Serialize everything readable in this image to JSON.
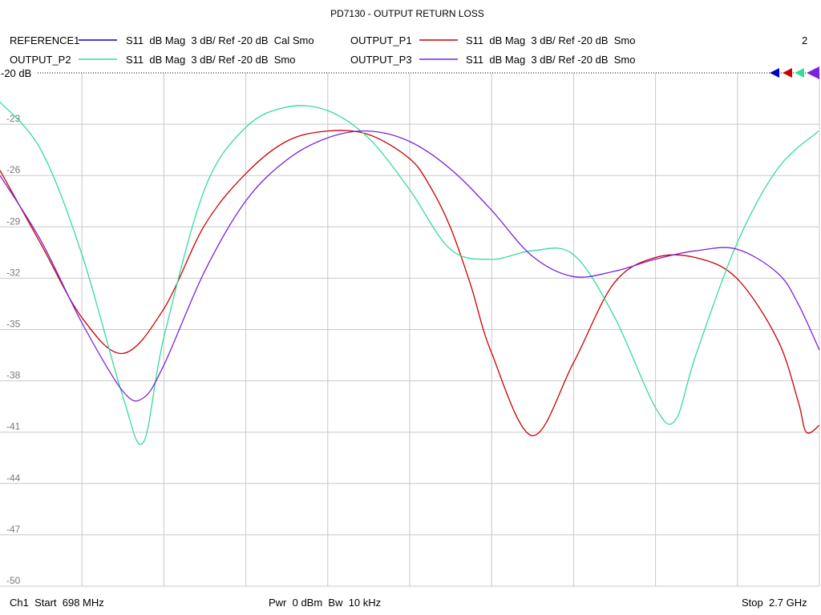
{
  "chart_data": {
    "type": "line",
    "title": "PD7130 - OUTPUT RETURN LOSS",
    "channel_number": "2",
    "reference_label": "-20 dB",
    "ylim": [
      -50,
      -20
    ],
    "yticks": [
      -23,
      -26,
      -29,
      -32,
      -35,
      -38,
      -41,
      -44,
      -47,
      -50
    ],
    "xlim": [
      0.698,
      2.7
    ],
    "x_unit": "GHz",
    "grid": true,
    "series": [
      {
        "name": "REFERENCE1",
        "description": "S11  dB Mag  3 dB/ Ref -20 dB  Cal Smo",
        "color": "#0000cc",
        "x": [],
        "y": []
      },
      {
        "name": "OUTPUT_P1",
        "description": "S11  dB Mag  3 dB/ Ref -20 dB  Smo",
        "color": "#cc0000",
        "x": [
          0.698,
          0.798,
          0.898,
          0.998,
          1.098,
          1.198,
          1.298,
          1.398,
          1.498,
          1.598,
          1.698,
          1.748,
          1.798,
          1.848,
          1.898,
          1.998,
          2.098,
          2.198,
          2.298,
          2.398,
          2.498,
          2.598,
          2.648,
          2.668,
          2.7
        ],
        "y": [
          -25.7,
          -30.0,
          -34.3,
          -36.4,
          -33.8,
          -28.9,
          -25.9,
          -24.0,
          -23.4,
          -23.6,
          -25.0,
          -26.6,
          -29.0,
          -32.4,
          -36.3,
          -41.2,
          -37.0,
          -32.3,
          -30.8,
          -30.8,
          -32.0,
          -35.6,
          -39.2,
          -41.0,
          -40.6
        ]
      },
      {
        "name": "OUTPUT_P2",
        "description": "S11  dB Mag  3 dB/ Ref -20 dB  Smo",
        "color": "#33dd99",
        "x": [
          0.698,
          0.798,
          0.898,
          0.998,
          1.048,
          1.098,
          1.198,
          1.298,
          1.398,
          1.498,
          1.598,
          1.698,
          1.798,
          1.898,
          1.998,
          2.098,
          2.198,
          2.298,
          2.348,
          2.398,
          2.498,
          2.598,
          2.698
        ],
        "y": [
          -21.7,
          -24.5,
          -30.6,
          -38.9,
          -41.6,
          -35.5,
          -26.8,
          -23.2,
          -22.0,
          -22.2,
          -23.8,
          -26.8,
          -30.3,
          -30.9,
          -30.4,
          -30.6,
          -34.2,
          -39.5,
          -40.3,
          -36.5,
          -30.0,
          -25.6,
          -23.4
        ]
      },
      {
        "name": "OUTPUT_P3",
        "description": "S11  dB Mag  3 dB/ Ref -20 dB  Smo",
        "color": "#7a22dd",
        "x": [
          0.698,
          0.798,
          0.898,
          0.998,
          1.048,
          1.098,
          1.198,
          1.298,
          1.398,
          1.498,
          1.598,
          1.698,
          1.798,
          1.898,
          1.998,
          2.098,
          2.198,
          2.298,
          2.398,
          2.498,
          2.598,
          2.648,
          2.7
        ],
        "y": [
          -26.0,
          -29.8,
          -34.6,
          -38.6,
          -39.0,
          -37.1,
          -31.6,
          -27.5,
          -25.1,
          -23.8,
          -23.4,
          -24.0,
          -25.6,
          -28.0,
          -30.7,
          -31.9,
          -31.6,
          -30.9,
          -30.4,
          -30.3,
          -31.7,
          -33.5,
          -36.2
        ]
      }
    ]
  },
  "footer": {
    "left": "Ch1  Start  698 MHz",
    "center": "Pwr  0 dBm  Bw  10 kHz",
    "right": "Stop  2.7 GHz"
  }
}
